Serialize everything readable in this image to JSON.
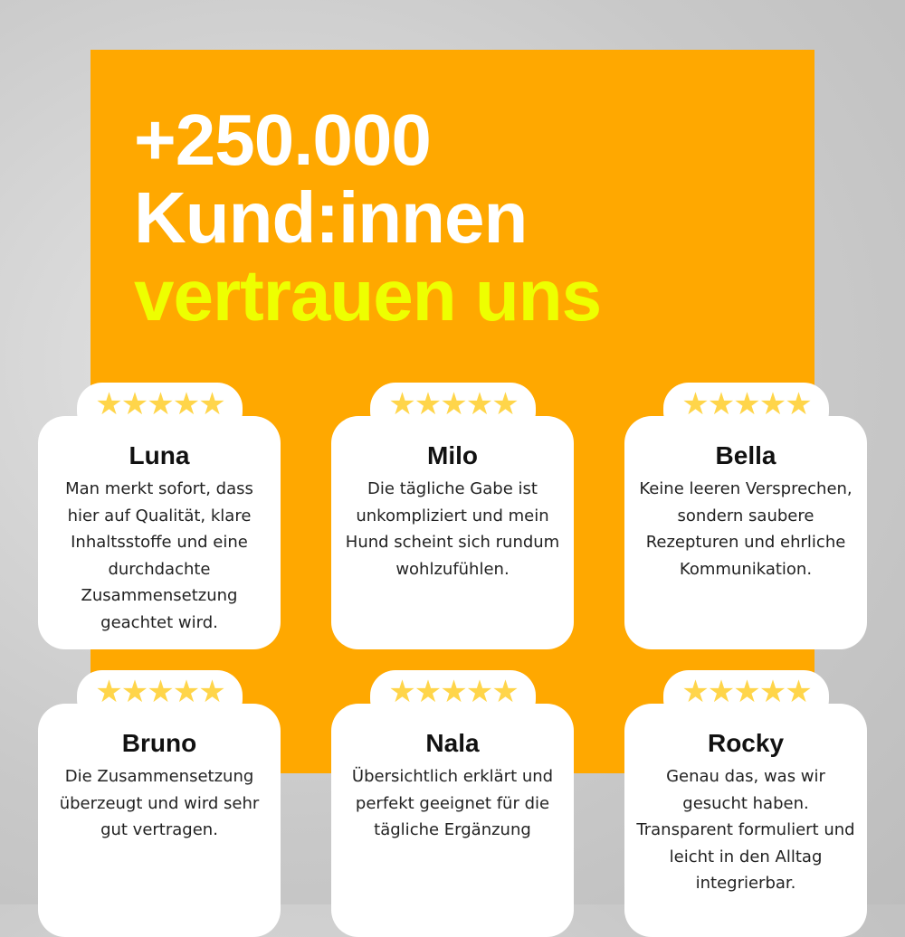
{
  "headline": {
    "line1": "+250.000",
    "line2": "Kund:innen",
    "line3": "vertrauen uns"
  },
  "colors": {
    "accent": "#FFA800",
    "highlight": "#EEFF00",
    "stars": "#FFD54A"
  },
  "rating_icon": "five-stars-icon",
  "stars": "★★★★★",
  "reviews": [
    {
      "name": "Luna",
      "text": "Man merkt sofort, dass hier auf Qualität, klare Inhaltsstoffe und eine durchdachte Zusammensetzung geachtet wird.",
      "rating": 5
    },
    {
      "name": "Milo",
      "text": "Die tägliche Gabe ist unkompliziert und mein Hund scheint sich rundum wohlzufühlen.",
      "rating": 5
    },
    {
      "name": "Bella",
      "text": "Keine leeren Versprechen, sondern saubere Rezepturen und ehrliche Kommunikation.",
      "rating": 5
    },
    {
      "name": "Bruno",
      "text": "Die Zusammensetzung überzeugt und wird sehr gut vertragen.",
      "rating": 5
    },
    {
      "name": "Nala",
      "text": "Übersichtlich erklärt und perfekt geeignet für die tägliche Ergänzung",
      "rating": 5
    },
    {
      "name": "Rocky",
      "text": "Genau das, was wir gesucht haben. Transparent formuliert und leicht in den Alltag integrierbar.",
      "rating": 5
    }
  ]
}
